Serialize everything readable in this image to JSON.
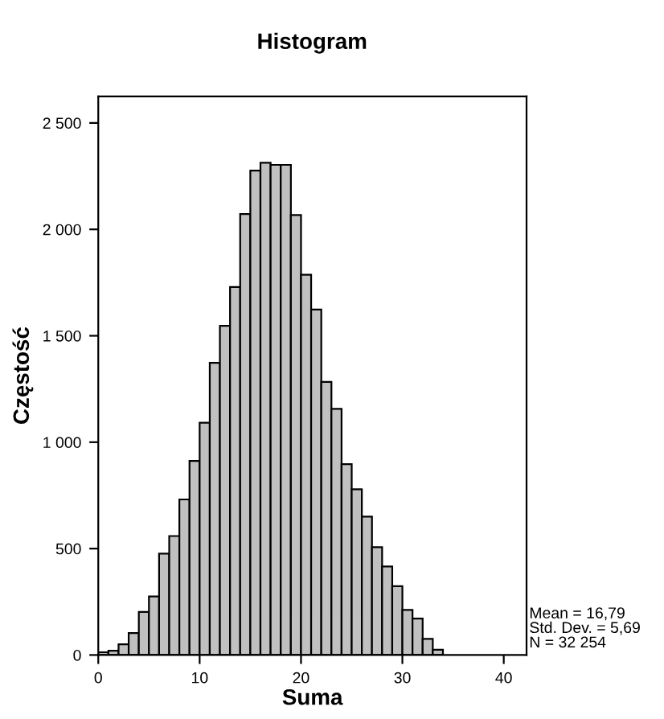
{
  "chart_data": {
    "type": "histogram",
    "title": "Histogram",
    "xlabel": "Suma",
    "ylabel": "Częstość",
    "bins": [
      0,
      1,
      2,
      3,
      4,
      5,
      6,
      7,
      8,
      9,
      10,
      11,
      12,
      13,
      14,
      15,
      16,
      17,
      18,
      19,
      20,
      21,
      22,
      23,
      24,
      25,
      26,
      27,
      28,
      29,
      30,
      31,
      32,
      33,
      34
    ],
    "values": [
      13,
      20,
      50,
      103,
      202,
      275,
      476,
      559,
      731,
      912,
      1091,
      1373,
      1547,
      1729,
      2072,
      2276,
      2313,
      2303,
      2303,
      2067,
      1787,
      1623,
      1283,
      1157,
      897,
      779,
      650,
      507,
      416,
      323,
      212,
      171,
      76,
      25
    ],
    "color": "#c0c0c0",
    "xlim": [
      0,
      42.25
    ],
    "ylim": [
      0,
      2625
    ],
    "xticks": [
      0,
      10,
      20,
      30,
      40
    ],
    "yticks": [
      {
        "value": 0,
        "label": "0"
      },
      {
        "value": 500,
        "label": "500"
      },
      {
        "value": 1000,
        "label": "1 000"
      },
      {
        "value": 1500,
        "label": "1 500"
      },
      {
        "value": 2000,
        "label": "2 000"
      },
      {
        "value": 2500,
        "label": "2 500"
      }
    ],
    "grid": false,
    "annotations": [
      "Mean = 16,79\nStd. Dev. = 5,69\nN = 32 254"
    ]
  }
}
